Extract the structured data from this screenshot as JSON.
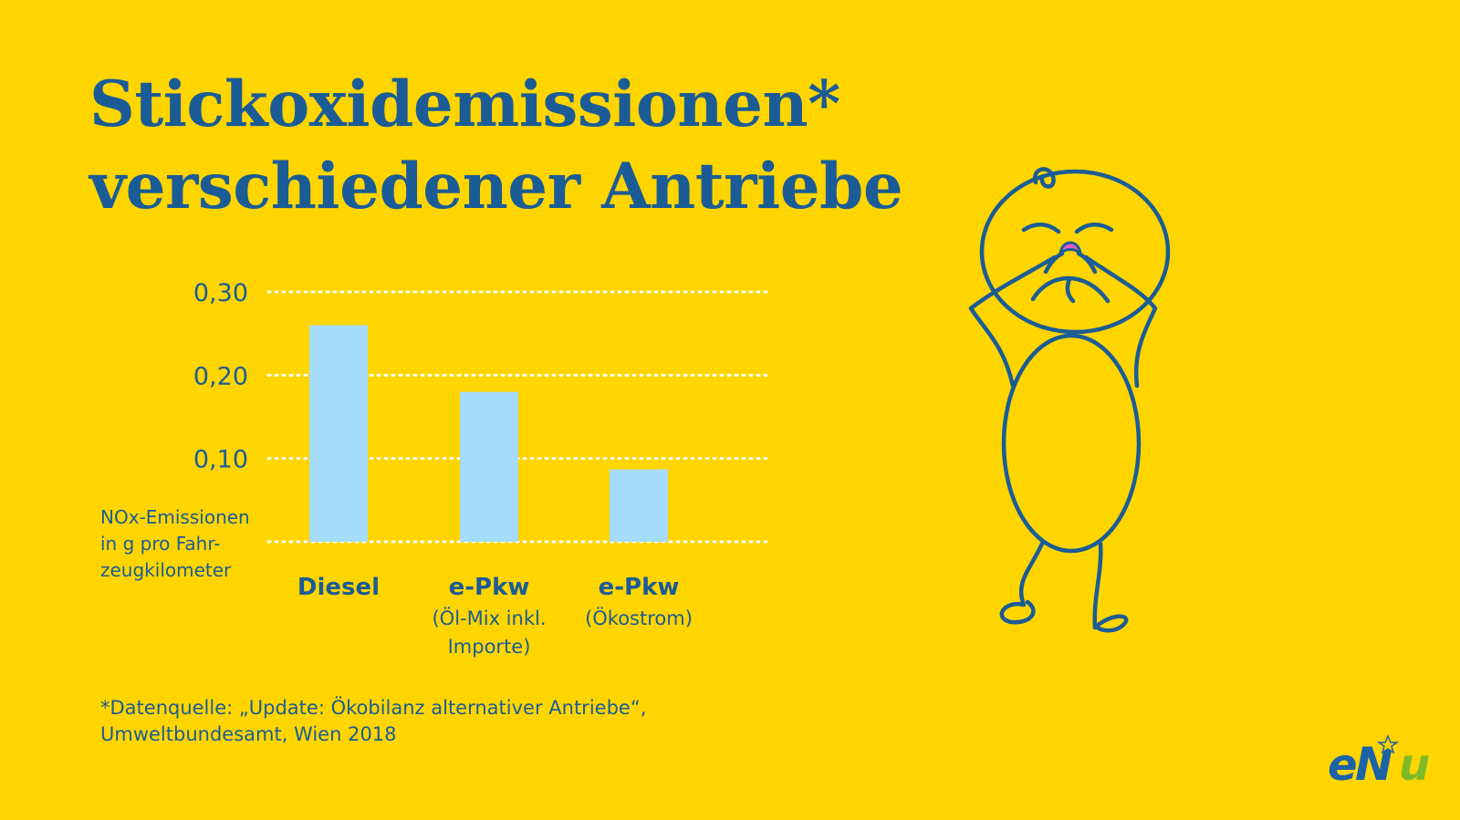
{
  "title": {
    "line1": "Stickoxidemissionen*",
    "line2": "verschiedener Antriebe"
  },
  "chart_data": {
    "type": "bar",
    "categories": [
      {
        "name": "Diesel",
        "sub": []
      },
      {
        "name": "e-Pkw",
        "sub": [
          "(Öl-Mix inkl.",
          "Importe)"
        ]
      },
      {
        "name": "e-Pkw",
        "sub": [
          "(Ökostrom)"
        ]
      }
    ],
    "values": [
      0.26,
      0.18,
      0.087
    ],
    "ylim": [
      0,
      0.3
    ],
    "yticks": [
      {
        "value": 0.3,
        "label": "0,30"
      },
      {
        "value": 0.2,
        "label": "0,20"
      },
      {
        "value": 0.1,
        "label": "0,10"
      }
    ],
    "ylabel": [
      "NOx-Emissionen",
      "in g pro Fahr-",
      "zeugkilometer"
    ],
    "grid": true,
    "bar_color": "#A6DCFB"
  },
  "source": {
    "line1": "*Datenquelle: „Update: Ökobilanz alternativer Antriebe“,",
    "line2": "Umweltbundesamt, Wien 2018"
  },
  "logo": {
    "text": "eNu"
  },
  "colors": {
    "background": "#FFD500",
    "text": "#1B5C96",
    "grid": "#FFFFFF",
    "logo_blue": "#1C62A6",
    "logo_green": "#7DB928",
    "accent_pink": "#E85CC8"
  },
  "illustration": {
    "icon": "disgusted-stick-figure-holding-nose-icon"
  }
}
